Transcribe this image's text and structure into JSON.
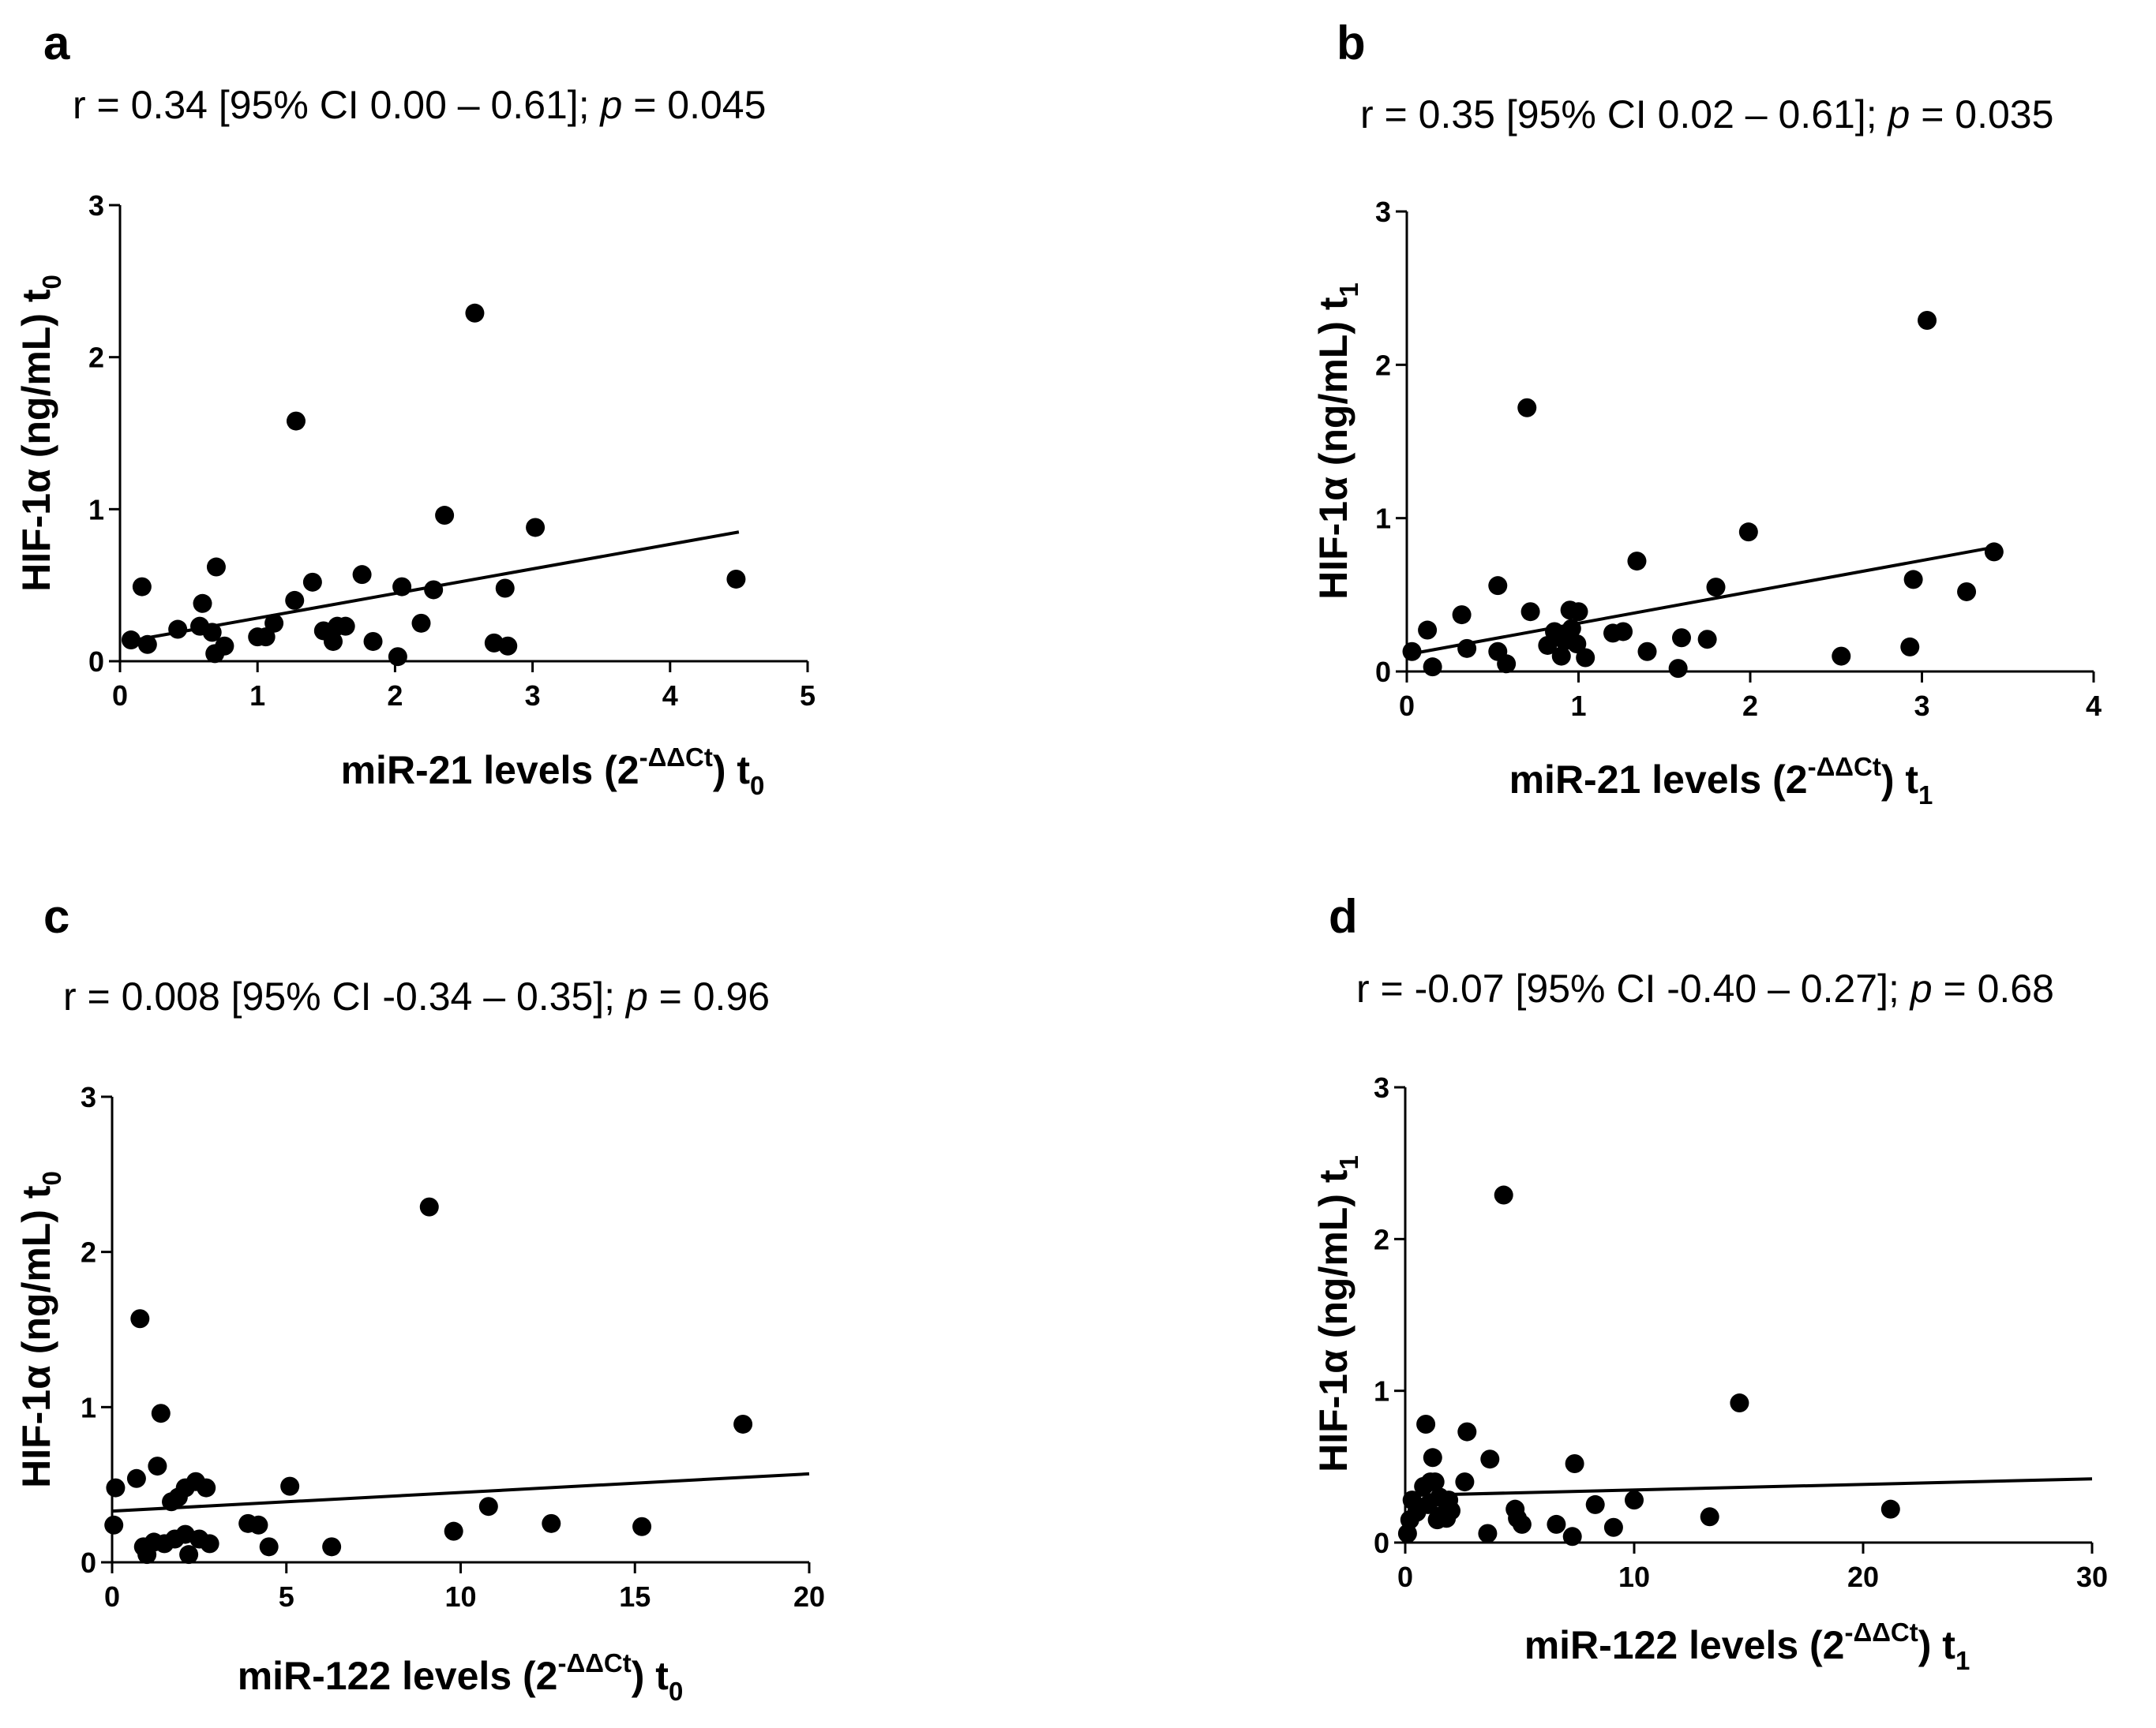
{
  "chart_data": [
    {
      "type": "scatter",
      "panel": "a",
      "title": "r = 0.34 [95% CI 0.00 – 0.61]; p = 0.045",
      "stat_prefix": "r = 0.34 [95% CI 0.00 – 0.61]; ",
      "stat_p_symbol": "p",
      "stat_p_value": " = 0.045",
      "xlabel": "miR-21 levels (2",
      "xlabel_sup": "-ΔΔCt",
      "xlabel_suffix": ") t",
      "xlabel_sub": "0",
      "ylabel": "HIF-1α (ng/mL) t",
      "ylabel_sub": "0",
      "xlim": [
        0,
        5
      ],
      "ylim": [
        0,
        3
      ],
      "xticks": [
        "0",
        "1",
        "2",
        "3",
        "4",
        "5"
      ],
      "yticks": [
        "0",
        "1",
        "2",
        "3"
      ],
      "fit_line": {
        "x": [
          0.05,
          4.5
        ],
        "y": [
          0.13,
          0.85
        ]
      },
      "points": [
        [
          0.08,
          0.14
        ],
        [
          0.16,
          0.49
        ],
        [
          0.2,
          0.11
        ],
        [
          0.42,
          0.21
        ],
        [
          0.58,
          0.23
        ],
        [
          0.6,
          0.38
        ],
        [
          0.67,
          0.19
        ],
        [
          0.69,
          0.05
        ],
        [
          0.7,
          0.62
        ],
        [
          0.76,
          0.1
        ],
        [
          1.0,
          0.16
        ],
        [
          1.06,
          0.16
        ],
        [
          1.12,
          0.25
        ],
        [
          1.27,
          0.4
        ],
        [
          1.28,
          1.58
        ],
        [
          1.4,
          0.52
        ],
        [
          1.48,
          0.2
        ],
        [
          1.55,
          0.13
        ],
        [
          1.58,
          0.23
        ],
        [
          1.64,
          0.23
        ],
        [
          1.76,
          0.57
        ],
        [
          1.84,
          0.13
        ],
        [
          2.02,
          0.03
        ],
        [
          2.05,
          0.49
        ],
        [
          2.19,
          0.25
        ],
        [
          2.28,
          0.47
        ],
        [
          2.36,
          0.96
        ],
        [
          2.58,
          2.29
        ],
        [
          2.72,
          0.12
        ],
        [
          2.8,
          0.48
        ],
        [
          2.82,
          0.1
        ],
        [
          3.02,
          0.88
        ],
        [
          4.48,
          0.54
        ]
      ]
    },
    {
      "type": "scatter",
      "panel": "b",
      "title": "r = 0.35 [95% CI 0.02 – 0.61]; p = 0.035",
      "stat_prefix": "r = 0.35 [95% CI 0.02 – 0.61]; ",
      "stat_p_symbol": "p",
      "stat_p_value": " = 0.035",
      "xlabel": "miR-21 levels (2",
      "xlabel_sup": "-ΔΔCt",
      "xlabel_suffix": ") t",
      "xlabel_sub": "1",
      "ylabel": "HIF-1α (ng/mL) t",
      "ylabel_sub": "1",
      "xlim": [
        0,
        4
      ],
      "ylim": [
        0,
        3
      ],
      "xticks": [
        "0",
        "1",
        "2",
        "3",
        "4"
      ],
      "yticks": [
        "0",
        "1",
        "2",
        "3"
      ],
      "fit_line": {
        "x": [
          0.0,
          3.42
        ],
        "y": [
          0.11,
          0.81
        ]
      },
      "points": [
        [
          0.03,
          0.13
        ],
        [
          0.12,
          0.27
        ],
        [
          0.15,
          0.03
        ],
        [
          0.32,
          0.37
        ],
        [
          0.35,
          0.15
        ],
        [
          0.53,
          0.56
        ],
        [
          0.53,
          0.13
        ],
        [
          0.58,
          0.05
        ],
        [
          0.7,
          1.72
        ],
        [
          0.72,
          0.39
        ],
        [
          0.82,
          0.17
        ],
        [
          0.86,
          0.26
        ],
        [
          0.9,
          0.1
        ],
        [
          0.92,
          0.2
        ],
        [
          0.95,
          0.4
        ],
        [
          0.96,
          0.28
        ],
        [
          0.99,
          0.18
        ],
        [
          1.0,
          0.39
        ],
        [
          1.04,
          0.09
        ],
        [
          1.2,
          0.25
        ],
        [
          1.26,
          0.26
        ],
        [
          1.34,
          0.72
        ],
        [
          1.4,
          0.13
        ],
        [
          1.58,
          0.02
        ],
        [
          1.6,
          0.22
        ],
        [
          1.75,
          0.21
        ],
        [
          1.8,
          0.55
        ],
        [
          1.99,
          0.91
        ],
        [
          2.53,
          0.1
        ],
        [
          2.93,
          0.16
        ],
        [
          2.95,
          0.6
        ],
        [
          3.03,
          2.29
        ],
        [
          3.26,
          0.52
        ],
        [
          3.42,
          0.78
        ]
      ]
    },
    {
      "type": "scatter",
      "panel": "c",
      "title": "r = 0.008 [95% CI -0.34 – 0.35]; p = 0.96",
      "stat_prefix": "r = 0.008 [95% CI -0.34 – 0.35]; ",
      "stat_p_symbol": "p",
      "stat_p_value": " = 0.96",
      "xlabel": "miR-122 levels (2",
      "xlabel_sup": "-ΔΔCt",
      "xlabel_suffix": ") t",
      "xlabel_sub": "0",
      "ylabel": "HIF-1α (ng/mL) t",
      "ylabel_sub": "0",
      "xlim": [
        0,
        20
      ],
      "ylim": [
        0,
        3
      ],
      "xticks": [
        "0",
        "5",
        "10",
        "15",
        "20"
      ],
      "yticks": [
        "0",
        "1",
        "2",
        "3"
      ],
      "fit_line": {
        "x": [
          0,
          20
        ],
        "y": [
          0.33,
          0.57
        ]
      },
      "points": [
        [
          0.05,
          0.24
        ],
        [
          0.1,
          0.48
        ],
        [
          0.7,
          0.54
        ],
        [
          0.8,
          1.57
        ],
        [
          0.9,
          0.1
        ],
        [
          1.0,
          0.05
        ],
        [
          1.2,
          0.13
        ],
        [
          1.3,
          0.62
        ],
        [
          1.4,
          0.96
        ],
        [
          1.5,
          0.12
        ],
        [
          1.7,
          0.39
        ],
        [
          1.8,
          0.15
        ],
        [
          1.9,
          0.42
        ],
        [
          2.1,
          0.48
        ],
        [
          2.1,
          0.18
        ],
        [
          2.2,
          0.05
        ],
        [
          2.4,
          0.52
        ],
        [
          2.5,
          0.15
        ],
        [
          2.7,
          0.48
        ],
        [
          2.8,
          0.12
        ],
        [
          3.9,
          0.25
        ],
        [
          4.2,
          0.24
        ],
        [
          4.5,
          0.1
        ],
        [
          5.1,
          0.49
        ],
        [
          6.3,
          0.1
        ],
        [
          9.1,
          2.29
        ],
        [
          9.8,
          0.2
        ],
        [
          10.8,
          0.36
        ],
        [
          12.6,
          0.25
        ],
        [
          15.2,
          0.23
        ],
        [
          18.1,
          0.89
        ]
      ]
    },
    {
      "type": "scatter",
      "panel": "d",
      "title": "r = -0.07 [95% CI -0.40 – 0.27]; p = 0.68",
      "stat_prefix": "r = -0.07 [95% CI -0.40 – 0.27]; ",
      "stat_p_symbol": "p",
      "stat_p_value": " = 0.68",
      "xlabel": "miR-122 levels (2",
      "xlabel_sup": "-ΔΔCt",
      "xlabel_suffix": ") t",
      "xlabel_sub": "1",
      "ylabel": "HIF-1α (ng/mL) t",
      "ylabel_sub": "1",
      "xlim": [
        0,
        30
      ],
      "ylim": [
        0,
        3
      ],
      "xticks": [
        "0",
        "10",
        "20",
        "30"
      ],
      "yticks": [
        "0",
        "1",
        "2",
        "3"
      ],
      "fit_line": {
        "x": [
          0,
          30
        ],
        "y": [
          0.31,
          0.42
        ]
      },
      "points": [
        [
          0.1,
          0.06
        ],
        [
          0.2,
          0.15
        ],
        [
          0.3,
          0.28
        ],
        [
          0.5,
          0.2
        ],
        [
          0.8,
          0.37
        ],
        [
          0.9,
          0.78
        ],
        [
          1.0,
          0.25
        ],
        [
          1.1,
          0.4
        ],
        [
          1.2,
          0.56
        ],
        [
          1.3,
          0.4
        ],
        [
          1.4,
          0.15
        ],
        [
          1.5,
          0.3
        ],
        [
          1.6,
          0.18
        ],
        [
          1.8,
          0.16
        ],
        [
          1.9,
          0.28
        ],
        [
          2.0,
          0.21
        ],
        [
          2.6,
          0.4
        ],
        [
          2.7,
          0.73
        ],
        [
          3.6,
          0.06
        ],
        [
          3.7,
          0.55
        ],
        [
          4.3,
          2.29
        ],
        [
          4.8,
          0.22
        ],
        [
          4.9,
          0.16
        ],
        [
          5.1,
          0.12
        ],
        [
          6.6,
          0.12
        ],
        [
          7.3,
          0.04
        ],
        [
          7.4,
          0.52
        ],
        [
          8.3,
          0.25
        ],
        [
          9.1,
          0.1
        ],
        [
          10.0,
          0.28
        ],
        [
          13.3,
          0.17
        ],
        [
          14.6,
          0.92
        ],
        [
          21.2,
          0.22
        ]
      ]
    }
  ]
}
